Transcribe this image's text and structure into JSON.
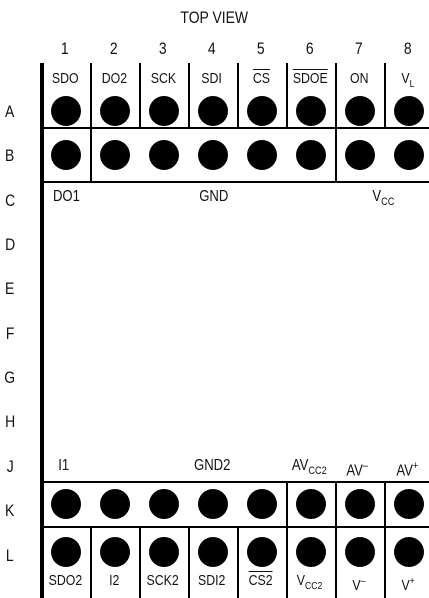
{
  "title": "TOP VIEW",
  "columns": [
    "1",
    "2",
    "3",
    "4",
    "5",
    "6",
    "7",
    "8"
  ],
  "rows": [
    "A",
    "B",
    "C",
    "D",
    "E",
    "F",
    "G",
    "H",
    "J",
    "K",
    "L"
  ],
  "top_pins": [
    {
      "label": "SDO",
      "overline": false
    },
    {
      "label": "DO2",
      "overline": false
    },
    {
      "label": "SCK",
      "overline": false
    },
    {
      "label": "SDI",
      "overline": false
    },
    {
      "label": "CS",
      "overline": true
    },
    {
      "label": "SDOE",
      "overline": true
    },
    {
      "label": "ON",
      "overline": false
    },
    {
      "label": "V",
      "sub": "L"
    }
  ],
  "bottom_pins": [
    {
      "label": "SDO2"
    },
    {
      "label": "I2"
    },
    {
      "label": "SCK2"
    },
    {
      "label": "SDI2"
    },
    {
      "label": "CS2",
      "overline": true
    },
    {
      "label": "V",
      "sub": "CC2"
    },
    {
      "label": "V",
      "sup": "–"
    },
    {
      "label": "V",
      "sup": "+"
    }
  ],
  "row_c_nets": {
    "left": "DO1",
    "mid": "GND",
    "right": "V",
    "right_sub": "CC"
  },
  "row_j_nets": {
    "left": "I1",
    "mid": "GND2",
    "avcc2": "AV",
    "avcc2_sub": "CC2",
    "avm": "AV",
    "avm_sup": "–",
    "avp": "AV",
    "avp_sup": "+"
  }
}
